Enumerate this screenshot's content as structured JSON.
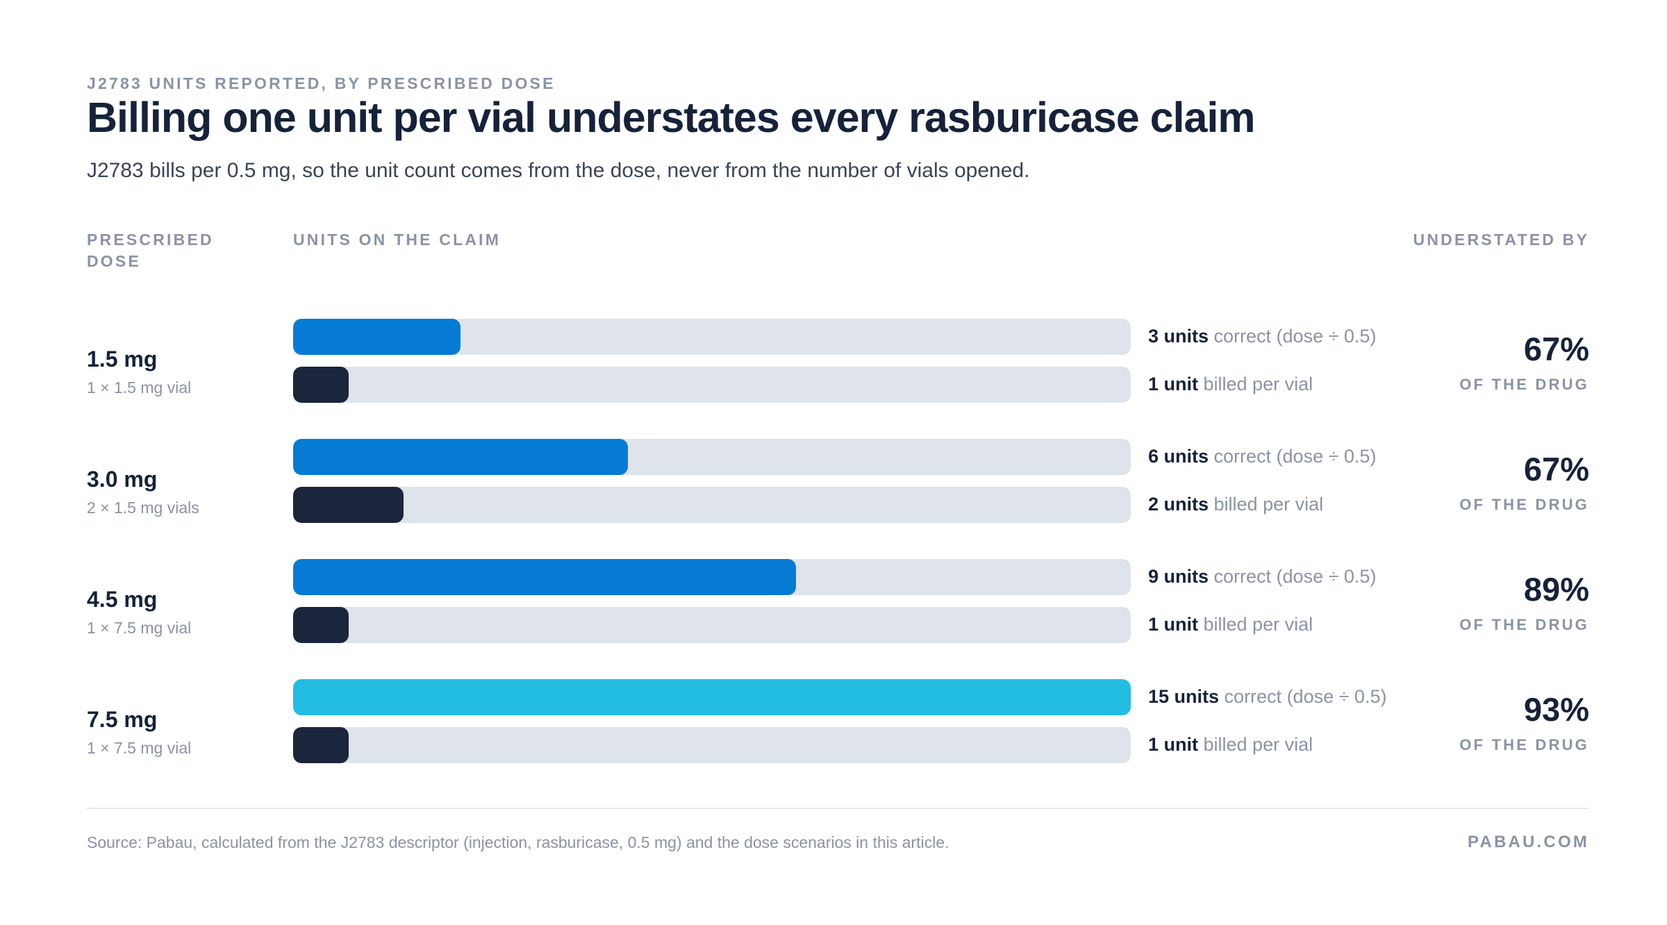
{
  "eyebrow": "J2783 UNITS REPORTED, BY PRESCRIBED DOSE",
  "title": "Billing one unit per vial understates every rasburicase claim",
  "subtitle": "J2783 bills per 0.5 mg, so the unit count comes from the dose, never from the number of vials opened.",
  "columns": {
    "dose": "PRESCRIBED DOSE",
    "units": "UNITS ON THE CLAIM",
    "understated": "UNDERSTATED BY"
  },
  "chart_data": {
    "type": "bar",
    "orientation": "horizontal",
    "x_max": 15,
    "categories": [
      "1.5 mg",
      "3.0 mg",
      "4.5 mg",
      "7.5 mg"
    ],
    "rows": [
      {
        "dose": "1.5 mg",
        "vials": "1 × 1.5 mg vial",
        "correct": 3,
        "correct_strong": "3 units",
        "correct_soft": "correct (dose ÷ 0.5)",
        "billed": 1,
        "billed_strong": "1 unit",
        "billed_soft": "billed per vial",
        "pct": "67%",
        "pct_sub": "OF THE DRUG"
      },
      {
        "dose": "3.0 mg",
        "vials": "2 × 1.5 mg vials",
        "correct": 6,
        "correct_strong": "6 units",
        "correct_soft": "correct (dose ÷ 0.5)",
        "billed": 2,
        "billed_strong": "2 units",
        "billed_soft": "billed per vial",
        "pct": "67%",
        "pct_sub": "OF THE DRUG"
      },
      {
        "dose": "4.5 mg",
        "vials": "1 × 7.5 mg vial",
        "correct": 9,
        "correct_strong": "9 units",
        "correct_soft": "correct (dose ÷ 0.5)",
        "billed": 1,
        "billed_strong": "1 unit",
        "billed_soft": "billed per vial",
        "pct": "89%",
        "pct_sub": "OF THE DRUG"
      },
      {
        "dose": "7.5 mg",
        "vials": "1 × 7.5 mg vial",
        "correct": 15,
        "correct_strong": "15 units",
        "correct_soft": "correct (dose ÷ 0.5)",
        "billed": 1,
        "billed_strong": "1 unit",
        "billed_soft": "billed per vial",
        "pct": "93%",
        "pct_sub": "OF THE DRUG"
      }
    ],
    "colors": {
      "correct": "#057bd4",
      "correct_highlight": "#23bde3",
      "billed": "#1b253b",
      "track": "#dfe3ec"
    }
  },
  "footer": {
    "source": "Source: Pabau, calculated from the J2783 descriptor (injection, rasburicase, 0.5 mg) and the dose scenarios in this article.",
    "brand": "PABAU.COM"
  }
}
